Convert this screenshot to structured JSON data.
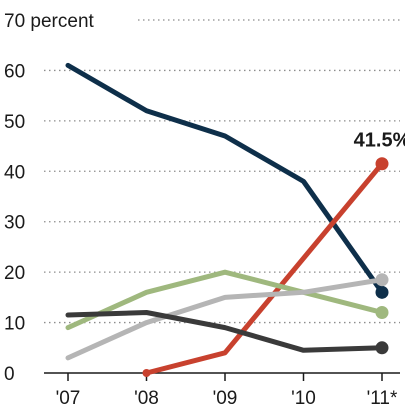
{
  "chart_data": {
    "type": "line",
    "title": "",
    "xlabel": "",
    "ylabel": "percent",
    "ylim": [
      0,
      70
    ],
    "yticks": [
      0,
      10,
      20,
      30,
      40,
      50,
      60,
      70
    ],
    "x": [
      "'07",
      "'08",
      "'09",
      "'10",
      "'11*"
    ],
    "grid": true,
    "series": [
      {
        "color": "#0e2f4a",
        "values": [
          61,
          52,
          47,
          38,
          16
        ],
        "end_marker": true
      },
      {
        "color": "#c8412e",
        "values": [
          null,
          0,
          4,
          null,
          41.5
        ],
        "end_marker": true,
        "start_marker": true,
        "x_override": [
          null,
          1,
          2,
          null,
          4
        ]
      },
      {
        "color": "#9fb87e",
        "values": [
          9,
          16,
          20,
          16,
          12
        ],
        "end_marker": true
      },
      {
        "color": "#b5b5b5",
        "values": [
          3,
          10,
          15,
          16,
          18.5
        ],
        "end_marker": true
      },
      {
        "color": "#3a3a3a",
        "values": [
          11.5,
          12,
          9,
          4.5,
          5
        ],
        "end_marker": true
      }
    ],
    "annotations": [
      {
        "text": "41.5%",
        "series_index": 1,
        "point_index": 4
      }
    ]
  }
}
